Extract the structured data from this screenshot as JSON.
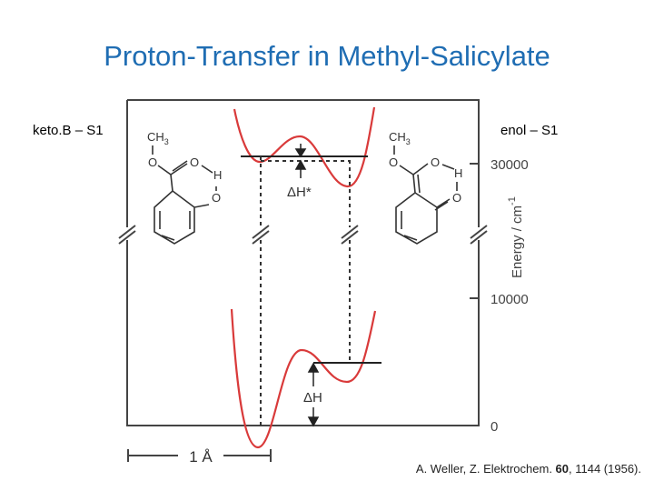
{
  "title": "Proton-Transfer in Methyl-Salicylate",
  "panels": {
    "left_label": "keto.B – S1",
    "right_label": "enol – S1"
  },
  "axis": {
    "label": "Energy / cm",
    "label_sup": "-1",
    "ticks": [
      "30000",
      "10000",
      "0"
    ]
  },
  "annotations": {
    "upper": "ΔH*",
    "lower": "ΔH",
    "scale": "1 Å"
  },
  "molecules": [
    {
      "methyl": "CH",
      "methyl_sub": "3",
      "atoms": [
        "O",
        "O",
        "H",
        "O"
      ]
    },
    {
      "methyl": "CH",
      "methyl_sub": "3",
      "atoms": [
        "O",
        "O",
        "H",
        "O"
      ]
    }
  ],
  "citation": {
    "authors": "A. Weller,  Z. Elektrochem. ",
    "volume": "60",
    "rest": ", 1144 (1956)."
  }
}
